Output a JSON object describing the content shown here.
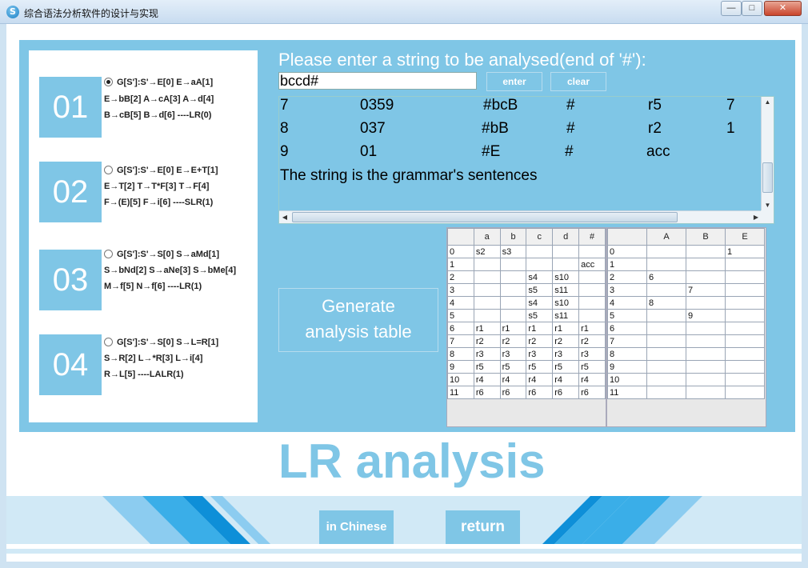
{
  "window": {
    "title": "综合语法分析软件的设计与实现",
    "icon_letter": "S",
    "min_glyph": "—",
    "max_glyph": "□",
    "close_glyph": "✕"
  },
  "options": [
    {
      "number": "01",
      "checked": true,
      "lines": [
        "G[S']:S'→E[0]  E→aA[1]",
        "E→bB[2]  A→cA[3]  A→d[4]",
        "B→cB[5]  B→d[6] ----LR(0)"
      ]
    },
    {
      "number": "02",
      "checked": false,
      "lines": [
        "G[S']:S'→E[0]  E→E+T[1]",
        "E→T[2]  T→T*F[3]  T→F[4]",
        "F→(E)[5]  F→i[6] ----SLR(1)"
      ]
    },
    {
      "number": "03",
      "checked": false,
      "lines": [
        "G[S']:S'→S[0]  S→aMd[1]",
        "S→bNd[2] S→aNe[3] S→bMe[4]",
        "M→f[5]  N→f[6] ----LR(1)"
      ]
    },
    {
      "number": "04",
      "checked": false,
      "lines": [
        "G[S']:S'→S[0]  S→L=R[1]",
        "S→R[2]  L→*R[3]  L→i[4]",
        "R→L[5] ----LALR(1)"
      ]
    }
  ],
  "input": {
    "prompt": "Please enter a string to be analysed(end of '#'):",
    "value": "bccd#",
    "enter_label": "enter",
    "clear_label": "clear"
  },
  "results": {
    "rows": [
      [
        "7",
        "0359",
        "#bcB",
        "#",
        "r5",
        "7"
      ],
      [
        "8",
        "037",
        "#bB",
        "#",
        "r2",
        "1"
      ],
      [
        "9",
        "01",
        "#E",
        "#",
        "acc",
        ""
      ]
    ],
    "message": "The string is the grammar's sentences",
    "scroll": {
      "up": "▲",
      "down": "▼",
      "left": "◀",
      "right": "▶",
      "grip": "≡",
      "hgrip": "|||"
    }
  },
  "generate_button": [
    "Generate",
    "analysis table"
  ],
  "action_table": {
    "headers": [
      "",
      "a",
      "b",
      "c",
      "d",
      "#"
    ],
    "rows": [
      [
        "0",
        "s2",
        "s3",
        "",
        "",
        ""
      ],
      [
        "1",
        "",
        "",
        "",
        "",
        "acc"
      ],
      [
        "2",
        "",
        "",
        "s4",
        "s10",
        ""
      ],
      [
        "3",
        "",
        "",
        "s5",
        "s11",
        ""
      ],
      [
        "4",
        "",
        "",
        "s4",
        "s10",
        ""
      ],
      [
        "5",
        "",
        "",
        "s5",
        "s11",
        ""
      ],
      [
        "6",
        "r1",
        "r1",
        "r1",
        "r1",
        "r1"
      ],
      [
        "7",
        "r2",
        "r2",
        "r2",
        "r2",
        "r2"
      ],
      [
        "8",
        "r3",
        "r3",
        "r3",
        "r3",
        "r3"
      ],
      [
        "9",
        "r5",
        "r5",
        "r5",
        "r5",
        "r5"
      ],
      [
        "10",
        "r4",
        "r4",
        "r4",
        "r4",
        "r4"
      ],
      [
        "11",
        "r6",
        "r6",
        "r6",
        "r6",
        "r6"
      ]
    ]
  },
  "goto_table": {
    "headers": [
      "",
      "A",
      "B",
      "E"
    ],
    "rows": [
      [
        "0",
        "",
        "",
        "1"
      ],
      [
        "1",
        "",
        "",
        ""
      ],
      [
        "2",
        "6",
        "",
        ""
      ],
      [
        "3",
        "",
        "7",
        ""
      ],
      [
        "4",
        "8",
        "",
        ""
      ],
      [
        "5",
        "",
        "9",
        ""
      ],
      [
        "6",
        "",
        "",
        ""
      ],
      [
        "7",
        "",
        "",
        ""
      ],
      [
        "8",
        "",
        "",
        ""
      ],
      [
        "9",
        "",
        "",
        ""
      ],
      [
        "10",
        "",
        "",
        ""
      ],
      [
        "11",
        "",
        "",
        ""
      ]
    ]
  },
  "page_title": "LR analysis",
  "bottom": {
    "chinese_label": "in Chinese",
    "return_label": "return"
  },
  "colors": {
    "accent": "#7fc6e6",
    "stripe_dark": "#0e8fd8",
    "stripe_mid": "#3aaee8",
    "stripe_light": "#8cccf0"
  }
}
